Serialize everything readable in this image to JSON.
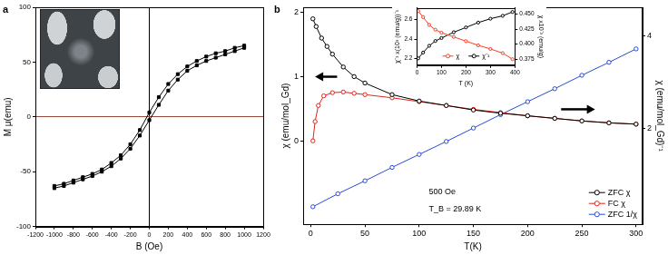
{
  "chart_data": [
    {
      "type": "line",
      "title": "a",
      "x_label": "B (Oe)",
      "y_label": "M μ(emu)",
      "xlim": [
        -1200,
        1200
      ],
      "xticks": [
        -1200,
        -1000,
        -800,
        -600,
        -400,
        -200,
        0,
        200,
        400,
        600,
        800,
        1000,
        1200
      ],
      "ylim": [
        -100,
        100
      ],
      "yticks": [
        -100,
        -50,
        0,
        50,
        100
      ],
      "grid": false,
      "marker": "square",
      "line_style": "solid",
      "series": [
        {
          "color": "#000000",
          "x": [
            1000,
            900,
            800,
            700,
            600,
            500,
            400,
            300,
            200,
            100,
            0,
            -100,
            -200,
            -300,
            -400,
            -500,
            -600,
            -700,
            -800,
            -900,
            -1000
          ],
          "values": [
            65,
            63,
            60,
            58,
            55,
            51,
            46,
            39,
            30,
            18,
            4,
            -12,
            -25,
            -35,
            -42,
            -48,
            -52,
            -55,
            -58,
            -61,
            -63
          ]
        },
        {
          "color": "#000000",
          "x": [
            -1000,
            -900,
            -800,
            -700,
            -600,
            -500,
            -400,
            -300,
            -200,
            -100,
            0,
            100,
            200,
            300,
            400,
            500,
            600,
            700,
            800,
            900,
            1000
          ],
          "values": [
            -65,
            -63,
            -60,
            -57,
            -54,
            -50,
            -45,
            -38,
            -29,
            -17,
            -3,
            11,
            24,
            34,
            42,
            47,
            51,
            54,
            57,
            60,
            63
          ]
        }
      ]
    },
    {
      "type": "line",
      "title": "b",
      "x_label": "T(K)",
      "y_label": "χ (emu/mol_Gd)",
      "y2_label": "χ (emu/mol_Gd)⁻¹",
      "xlim": [
        -7,
        306
      ],
      "xticks": [
        0,
        50,
        100,
        150,
        200,
        250,
        300
      ],
      "ylim": [
        -1.3,
        2.08
      ],
      "yticks": [
        0,
        1,
        2
      ],
      "y2lim": [
        -0.07,
        4.62
      ],
      "y2ticks": [
        2,
        4
      ],
      "grid": false,
      "legend": "lower right",
      "marker": "circle",
      "line_style": "solid",
      "annotations": [
        "500 Oe",
        "T_B = 29.89 K"
      ],
      "series": [
        {
          "name": "ZFC χ",
          "color": "#000000",
          "x": [
            2,
            5,
            10,
            15,
            20,
            30,
            40,
            50,
            75,
            100,
            125,
            150,
            175,
            200,
            225,
            250,
            275,
            300
          ],
          "values": [
            1.9,
            1.78,
            1.6,
            1.47,
            1.35,
            1.15,
            1.0,
            0.9,
            0.72,
            0.62,
            0.55,
            0.48,
            0.43,
            0.39,
            0.35,
            0.31,
            0.28,
            0.26
          ]
        },
        {
          "name": "FC χ",
          "color": "#e0241b",
          "x": [
            2,
            4,
            7,
            12,
            20,
            30,
            40,
            50,
            75,
            100,
            125,
            150,
            175,
            200,
            225,
            250,
            275,
            300
          ],
          "values": [
            0.0,
            0.3,
            0.55,
            0.7,
            0.75,
            0.76,
            0.74,
            0.72,
            0.67,
            0.61,
            0.55,
            0.49,
            0.44,
            0.39,
            0.35,
            0.31,
            0.28,
            0.26
          ]
        },
        {
          "name": "ZFC 1/χ",
          "color": "#2a4bd7",
          "axis": "y2",
          "x": [
            2,
            25,
            50,
            75,
            100,
            125,
            150,
            175,
            200,
            225,
            250,
            275,
            300
          ],
          "values": [
            0.31,
            0.59,
            0.87,
            1.16,
            1.44,
            1.72,
            2.01,
            2.3,
            2.58,
            2.86,
            3.15,
            3.43,
            3.72
          ]
        }
      ]
    },
    {
      "type": "line",
      "x_label": "T (K)",
      "y_label": "χ⁻¹ x(10³ (emu/g))⁻¹",
      "y2_label": "χ x10⁻³ (emu/g)",
      "xlim": [
        0,
        400
      ],
      "xticks": [
        0,
        100,
        200,
        300,
        400
      ],
      "ylim": [
        2.13,
        2.72
      ],
      "yticks": [
        2.2,
        2.4,
        2.6
      ],
      "y2lim": [
        0.365,
        0.46
      ],
      "y2ticks": [
        0.375,
        {
          "value": 0.4,
          "label": "0.400"
        },
        0.425,
        {
          "value": 0.45,
          "label": "0.450"
        }
      ],
      "grid": false,
      "legend": "lower center",
      "marker": "circle",
      "line_style": "solid",
      "series": [
        {
          "name": "χ",
          "color": "#ff3b1f",
          "axis": "y2",
          "x": [
            5,
            25,
            50,
            75,
            100,
            150,
            200,
            250,
            300,
            350,
            390
          ],
          "values": [
            0.455,
            0.445,
            0.432,
            0.424,
            0.419,
            0.412,
            0.405,
            0.398,
            0.392,
            0.385,
            0.375
          ]
        },
        {
          "name": "χ⁻¹",
          "color": "#000000",
          "x": [
            5,
            25,
            50,
            75,
            100,
            150,
            200,
            250,
            300,
            350,
            390
          ],
          "values": [
            2.2,
            2.26,
            2.33,
            2.38,
            2.41,
            2.47,
            2.52,
            2.57,
            2.61,
            2.64,
            2.68
          ]
        }
      ]
    }
  ]
}
